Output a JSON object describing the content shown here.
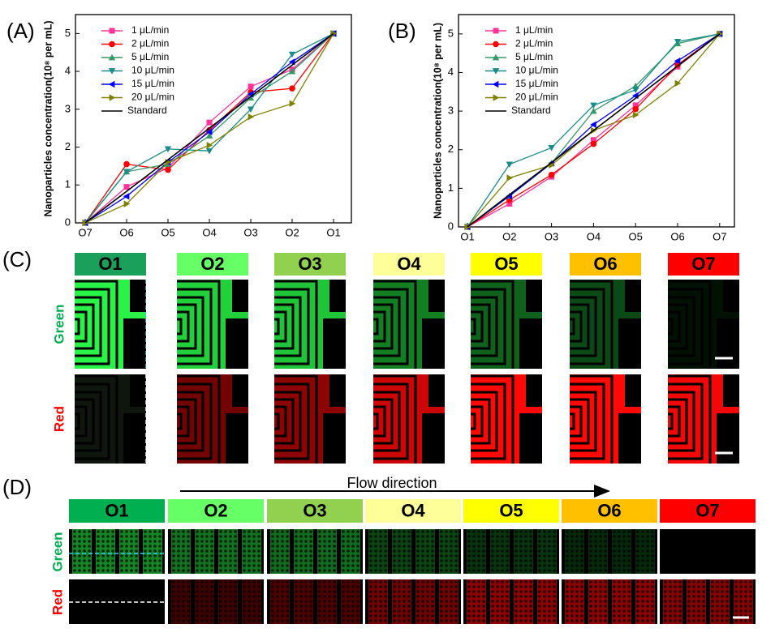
{
  "chart_data": [
    {
      "type": "line",
      "label": "(A)",
      "y_label": "Nanoparticles concentration(10⁸ per mL)",
      "categories": [
        "O7",
        "O6",
        "O5",
        "O4",
        "O3",
        "O2",
        "O1"
      ],
      "ylim": [
        0,
        5.5
      ],
      "yticks": [
        0,
        1,
        2,
        3,
        4,
        5
      ],
      "legend": "upper left",
      "series": [
        {
          "name": "1 μL/min",
          "color": "#ff3399",
          "marker": "square",
          "values": [
            0,
            0.95,
            1.45,
            2.65,
            3.6,
            4.05,
            5
          ]
        },
        {
          "name": "2 μL/min",
          "color": "#ff0000",
          "marker": "circle",
          "values": [
            0,
            1.55,
            1.4,
            2.45,
            3.45,
            3.55,
            5
          ]
        },
        {
          "name": "5 μL/min",
          "color": "#339966",
          "marker": "triangle-up",
          "values": [
            0,
            1.35,
            1.55,
            2.3,
            3.3,
            4.0,
            5
          ]
        },
        {
          "name": "10 μL/min",
          "color": "#1a8c8c",
          "marker": "triangle-down",
          "values": [
            0,
            1.35,
            1.95,
            1.9,
            3.0,
            4.45,
            5
          ]
        },
        {
          "name": "15 μL/min",
          "color": "#0000ff",
          "marker": "triangle-left",
          "values": [
            0,
            0.7,
            1.6,
            2.4,
            3.4,
            4.25,
            5
          ]
        },
        {
          "name": "20 μL/min",
          "color": "#808000",
          "marker": "triangle-right",
          "values": [
            0,
            0.5,
            1.6,
            2.05,
            2.8,
            3.15,
            5
          ]
        },
        {
          "name": "Standard",
          "color": "#000000",
          "marker": "none",
          "values": [
            0,
            0.833,
            1.667,
            2.5,
            3.333,
            4.167,
            5
          ]
        }
      ]
    },
    {
      "type": "line",
      "label": "(B)",
      "y_label": "Nanoparticles concentration(10⁸ per mL)",
      "categories": [
        "O1",
        "O2",
        "O3",
        "O4",
        "O5",
        "O6",
        "O7"
      ],
      "ylim": [
        0,
        5.5
      ],
      "yticks": [
        0,
        1,
        2,
        3,
        4,
        5
      ],
      "legend": "upper left",
      "series": [
        {
          "name": "1 μL/min",
          "color": "#ff3399",
          "marker": "square",
          "values": [
            0,
            0.6,
            1.3,
            2.25,
            3.15,
            4.15,
            5
          ]
        },
        {
          "name": "2 μL/min",
          "color": "#ff0000",
          "marker": "circle",
          "values": [
            0,
            0.7,
            1.35,
            2.15,
            3.05,
            4.2,
            5
          ]
        },
        {
          "name": "5 μL/min",
          "color": "#339966",
          "marker": "triangle-up",
          "values": [
            0,
            0.8,
            1.65,
            3.0,
            3.65,
            4.75,
            5
          ]
        },
        {
          "name": "10 μL/min",
          "color": "#1a8c8c",
          "marker": "triangle-down",
          "values": [
            0,
            1.62,
            2.05,
            3.15,
            3.55,
            4.8,
            5
          ]
        },
        {
          "name": "15 μL/min",
          "color": "#0000ff",
          "marker": "triangle-left",
          "values": [
            0,
            0.8,
            1.65,
            2.65,
            3.4,
            4.3,
            5
          ]
        },
        {
          "name": "20 μL/min",
          "color": "#808000",
          "marker": "triangle-right",
          "values": [
            0,
            1.27,
            1.6,
            2.5,
            2.9,
            3.72,
            5
          ]
        },
        {
          "name": "Standard",
          "color": "#000000",
          "marker": "none",
          "values": [
            0,
            0.833,
            1.667,
            2.5,
            3.333,
            4.167,
            5
          ]
        }
      ]
    }
  ],
  "panel_c": {
    "label": "(C)",
    "columns": [
      "O1",
      "O2",
      "O3",
      "O4",
      "O5",
      "O6",
      "O7"
    ],
    "header_colors": [
      "#1aa05a",
      "#66ff66",
      "#92d050",
      "#ffff99",
      "#ffff00",
      "#ffc000",
      "#ff0000"
    ],
    "rows": [
      "Green",
      "Red"
    ]
  },
  "panel_d": {
    "label": "(D)",
    "annotation": "Flow direction",
    "columns": [
      "O1",
      "O2",
      "O3",
      "O4",
      "O5",
      "O6",
      "O7"
    ],
    "header_colors": [
      "#00b050",
      "#66ff66",
      "#92d050",
      "#ffff99",
      "#ffff00",
      "#ffc000",
      "#ff0000"
    ],
    "rows": [
      "Green",
      "Red"
    ]
  }
}
